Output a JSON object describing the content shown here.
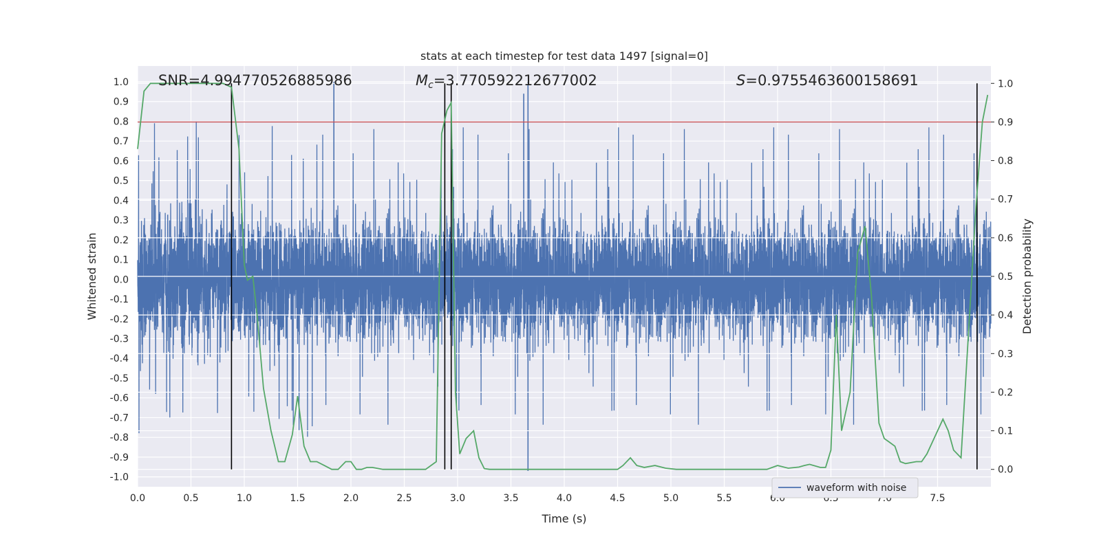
{
  "chart_data": {
    "type": "line",
    "title": "stats at each timestep for test data 1497 [signal=0]",
    "xlabel": "Time (s)",
    "ylabel": "Whitened strain",
    "y2label": "Detection probability",
    "xlim": [
      0,
      8
    ],
    "ylim": [
      -1.05,
      1.08
    ],
    "y2lim": [
      -0.045,
      1.045
    ],
    "xticks": [
      "0.0",
      "0.5",
      "1.0",
      "1.5",
      "2.0",
      "2.5",
      "3.0",
      "3.5",
      "4.0",
      "4.5",
      "5.0",
      "5.5",
      "6.0",
      "6.5",
      "7.0",
      "7.5"
    ],
    "yticks": [
      "1.0",
      "0.9",
      "0.8",
      "0.7",
      "0.6",
      "0.5",
      "0.4",
      "0.3",
      "0.2",
      "0.1",
      "0.0",
      "-0.1",
      "-0.2",
      "-0.3",
      "-0.4",
      "-0.5",
      "-0.6",
      "-0.7",
      "-0.8",
      "-0.9",
      "-1.0"
    ],
    "y2ticks": [
      "1.0",
      "0.9",
      "0.8",
      "0.7",
      "0.6",
      "0.5",
      "0.4",
      "0.3",
      "0.2",
      "0.1",
      "0.0"
    ],
    "grid": true,
    "legend": {
      "placement": "lower-right",
      "entries": [
        "waveform with noise"
      ]
    },
    "annotations": {
      "snr": "SNR=4.994770526885986",
      "mc_symbol": "M",
      "mc_sub": "c",
      "mc_value": "=3.770592212677002",
      "s_symbol": "S",
      "s_value": "=0.9755463600158691"
    },
    "threshold": {
      "y2": 0.9,
      "color": "#c44e52"
    },
    "vlines_x": [
      0.88,
      2.88,
      2.94,
      7.87
    ],
    "series": [
      {
        "name": "waveform with noise",
        "axis": "left",
        "color": "#4c72b0",
        "samples": 8192,
        "x_range": [
          0,
          8
        ],
        "typical_range": [
          -0.4,
          0.45
        ],
        "max": 1.0,
        "min": -0.97
      },
      {
        "axis": "right",
        "color": "#55a868",
        "x": [
          0.0,
          0.06,
          0.12,
          0.2,
          0.3,
          0.4,
          0.5,
          0.6,
          0.7,
          0.8,
          0.88,
          0.95,
          1.0,
          1.03,
          1.08,
          1.12,
          1.18,
          1.25,
          1.32,
          1.38,
          1.45,
          1.5,
          1.56,
          1.62,
          1.68,
          1.75,
          1.82,
          1.88,
          1.95,
          2.0,
          2.05,
          2.1,
          2.15,
          2.2,
          2.3,
          2.4,
          2.5,
          2.6,
          2.7,
          2.8,
          2.85,
          2.9,
          2.94,
          2.98,
          3.02,
          3.08,
          3.15,
          3.2,
          3.25,
          3.3,
          3.4,
          3.5,
          3.6,
          3.7,
          3.8,
          3.9,
          4.0,
          4.2,
          4.4,
          4.5,
          4.55,
          4.62,
          4.68,
          4.75,
          4.85,
          4.95,
          5.05,
          5.2,
          5.4,
          5.6,
          5.8,
          5.9,
          6.0,
          6.1,
          6.2,
          6.25,
          6.3,
          6.4,
          6.45,
          6.5,
          6.55,
          6.6,
          6.68,
          6.75,
          6.82,
          6.88,
          6.95,
          7.0,
          7.05,
          7.1,
          7.15,
          7.2,
          7.3,
          7.35,
          7.4,
          7.5,
          7.55,
          7.6,
          7.65,
          7.72,
          7.8,
          7.86,
          7.92,
          7.97
        ],
        "values": [
          0.83,
          0.98,
          1.0,
          1.0,
          1.0,
          1.0,
          1.0,
          1.0,
          1.0,
          1.0,
          0.99,
          0.83,
          0.53,
          0.49,
          0.5,
          0.4,
          0.21,
          0.1,
          0.02,
          0.02,
          0.09,
          0.19,
          0.06,
          0.02,
          0.02,
          0.01,
          0.0,
          0.0,
          0.02,
          0.02,
          0.0,
          0.0,
          0.005,
          0.005,
          0.0,
          0.0,
          0.0,
          0.0,
          0.0,
          0.02,
          0.87,
          0.93,
          0.95,
          0.2,
          0.04,
          0.08,
          0.1,
          0.03,
          0.002,
          0.0,
          0.0,
          0.0,
          0.0,
          0.0,
          0.0,
          0.0,
          0.0,
          0.0,
          0.0,
          0.0,
          0.01,
          0.03,
          0.01,
          0.005,
          0.01,
          0.003,
          0.0,
          0.0,
          0.0,
          0.0,
          0.0,
          0.0,
          0.01,
          0.003,
          0.006,
          0.01,
          0.013,
          0.005,
          0.005,
          0.05,
          0.4,
          0.1,
          0.2,
          0.56,
          0.63,
          0.45,
          0.12,
          0.08,
          0.07,
          0.06,
          0.02,
          0.015,
          0.02,
          0.02,
          0.04,
          0.1,
          0.13,
          0.1,
          0.05,
          0.03,
          0.4,
          0.68,
          0.9,
          0.97
        ]
      }
    ]
  }
}
